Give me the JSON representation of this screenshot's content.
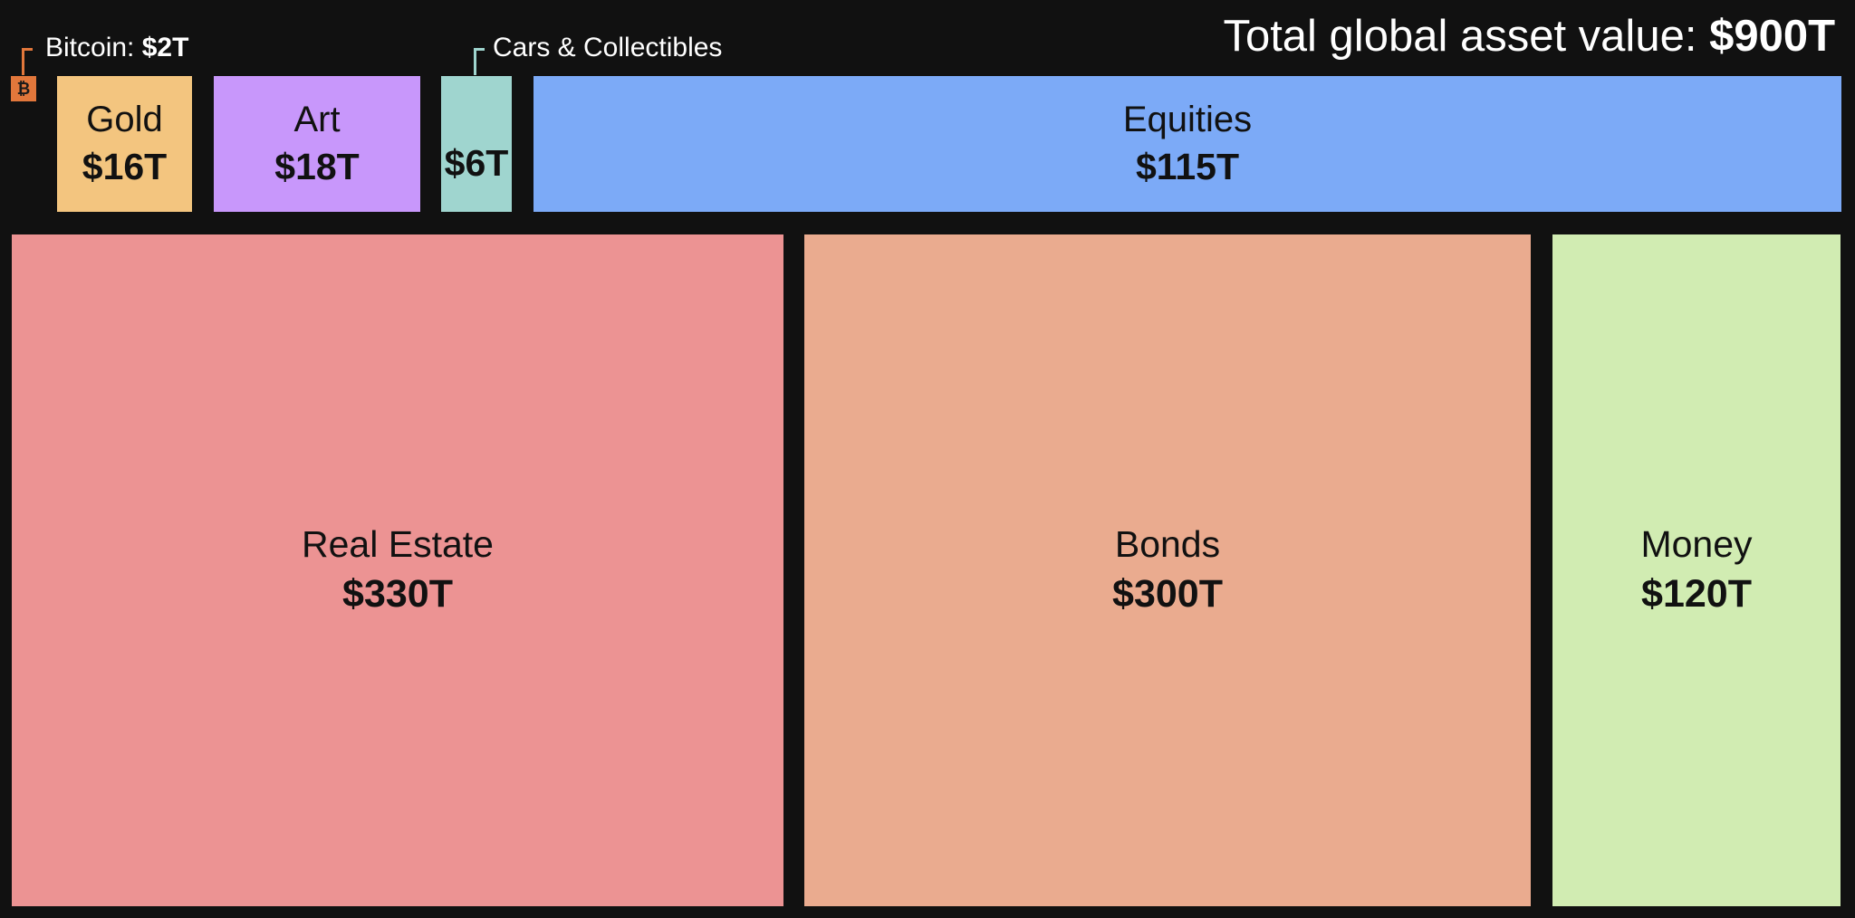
{
  "chart_data": {
    "type": "treemap",
    "title_prefix": "Total global asset value:",
    "title_total": "$900T",
    "items": [
      {
        "key": "bitcoin",
        "name": "Bitcoin",
        "label": "$2T",
        "value": 2,
        "color": "#e2773b"
      },
      {
        "key": "gold",
        "name": "Gold",
        "label": "$16T",
        "value": 16,
        "color": "#f3c57f"
      },
      {
        "key": "art",
        "name": "Art",
        "label": "$18T",
        "value": 18,
        "color": "#c897fb"
      },
      {
        "key": "cars",
        "name": "Cars & Collectibles",
        "label": "$6T",
        "value": 6,
        "color": "#9fd5cf"
      },
      {
        "key": "equities",
        "name": "Equities",
        "label": "$115T",
        "value": 115,
        "color": "#7caaf7"
      },
      {
        "key": "real_estate",
        "name": "Real Estate",
        "label": "$330T",
        "value": 330,
        "color": "#ec9393"
      },
      {
        "key": "bonds",
        "name": "Bonds",
        "label": "$300T",
        "value": 300,
        "color": "#eaab8f"
      },
      {
        "key": "money",
        "name": "Money",
        "label": "$120T",
        "value": 120,
        "color": "#d1ecb2"
      }
    ],
    "bitcoin_callout_name": "Bitcoin:",
    "bitcoin_icon_symbol": "₿"
  }
}
